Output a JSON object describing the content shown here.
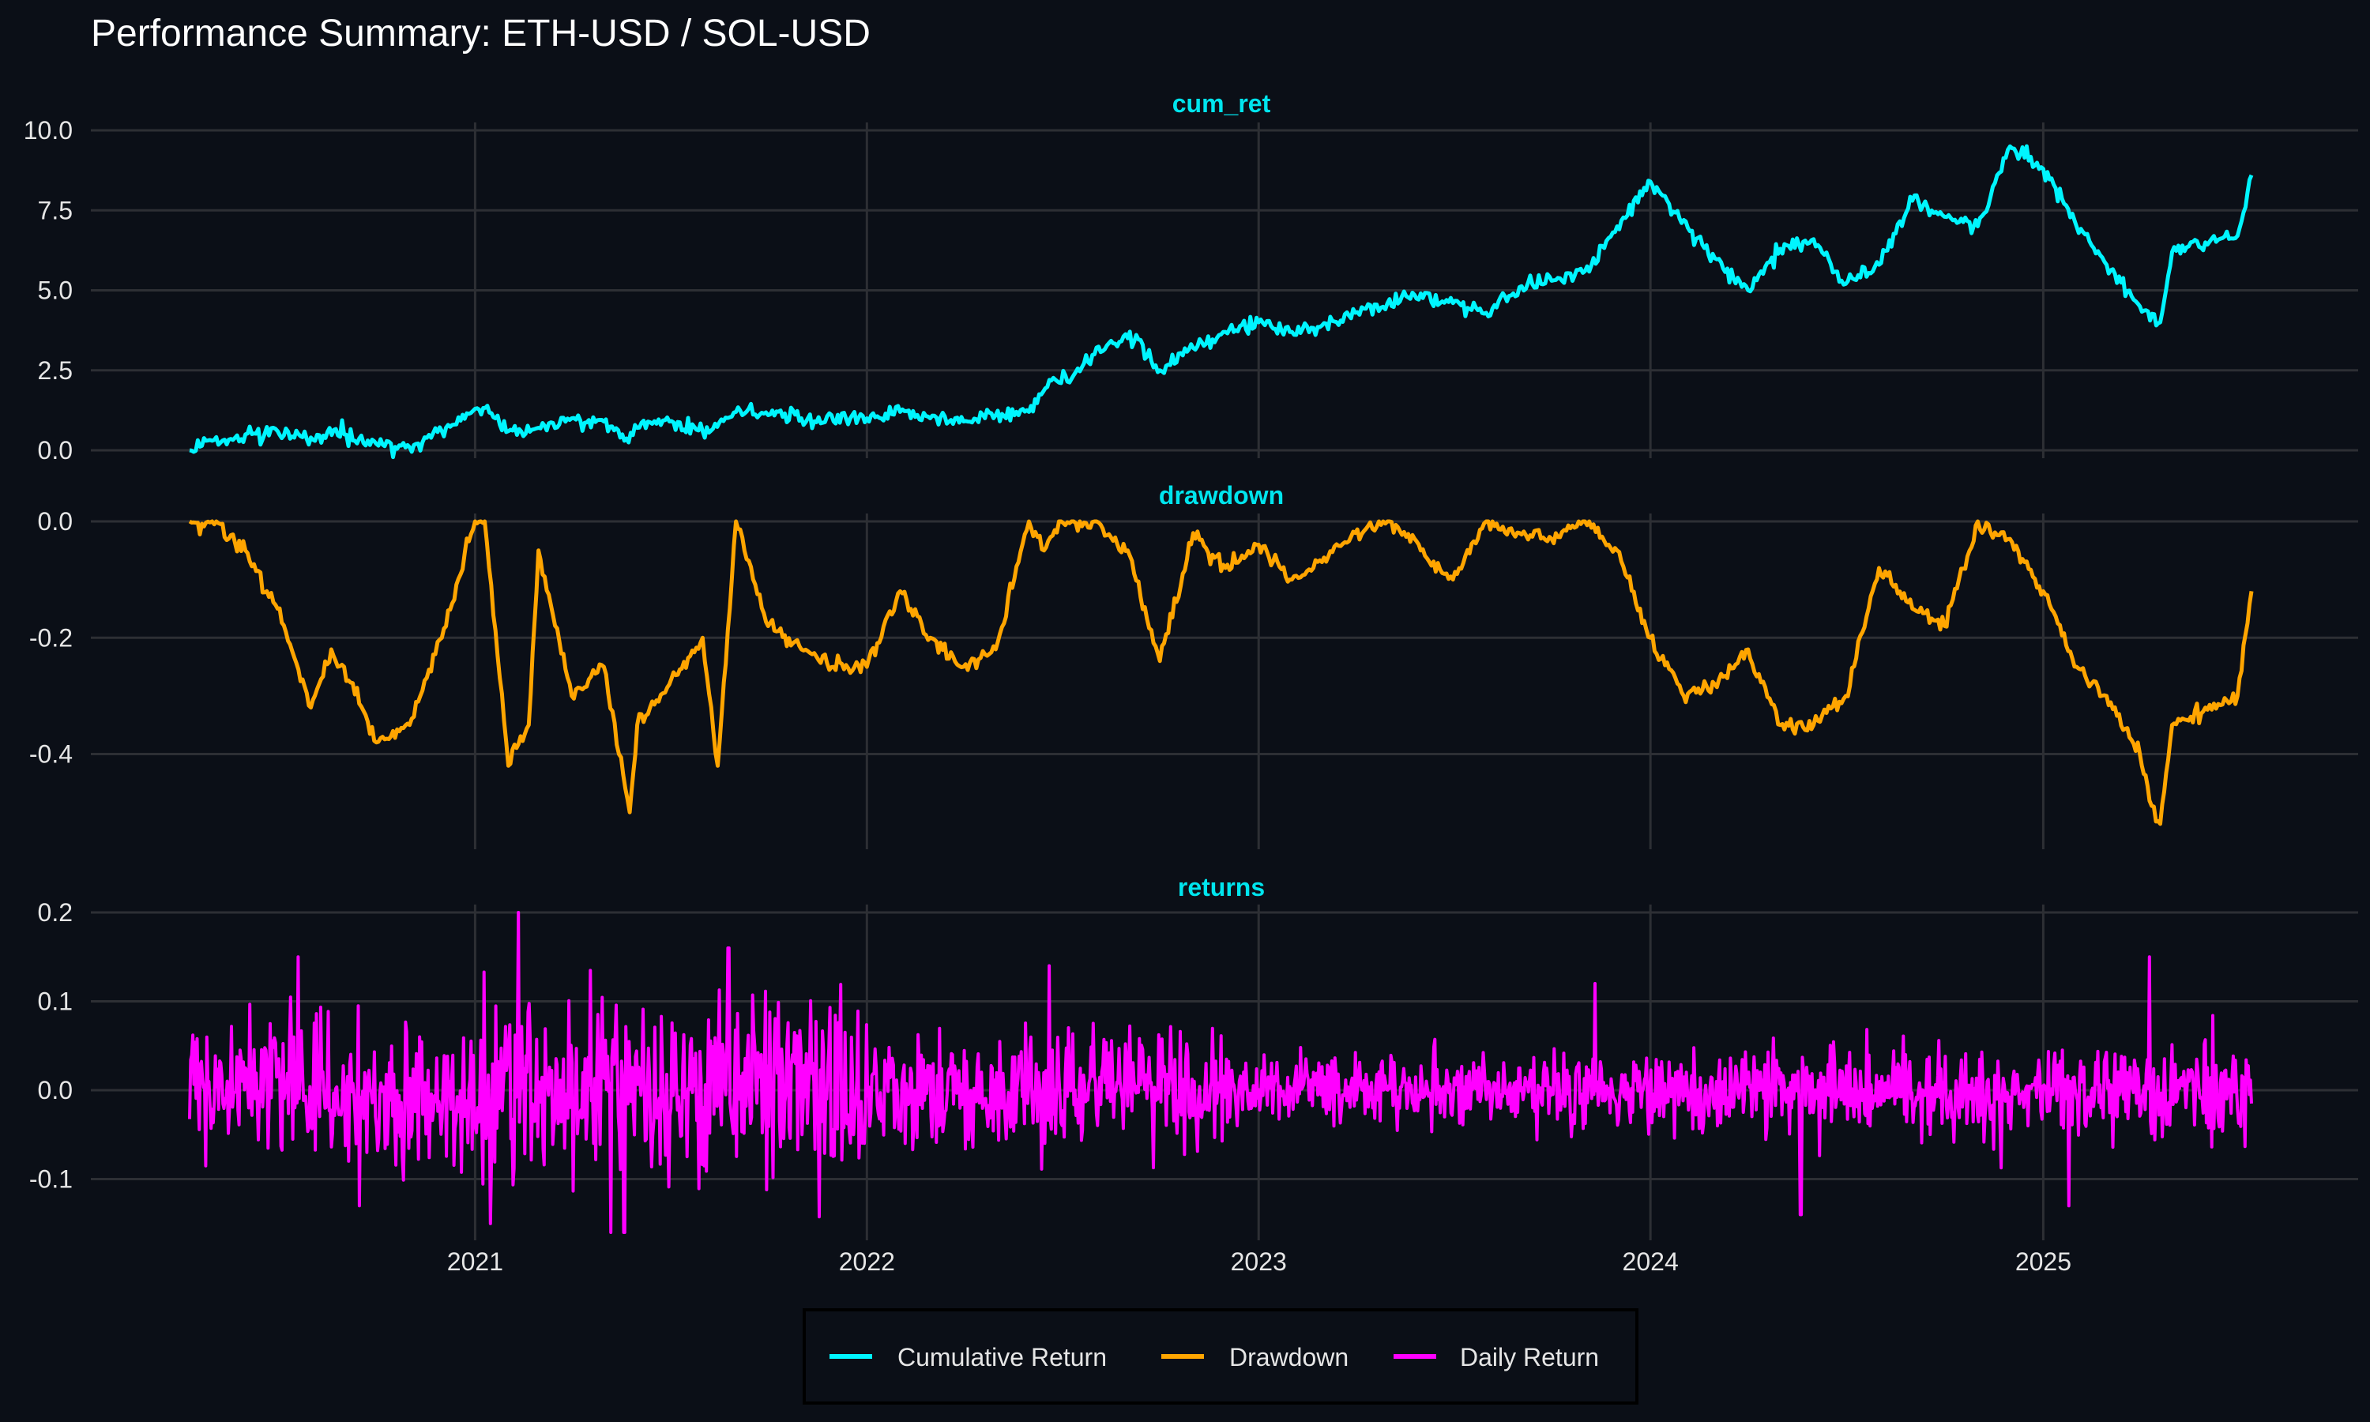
{
  "colors": {
    "background": "#0b0f17",
    "grid": "#2d2f34",
    "text": "#e6e6e6",
    "title": "#ffffff",
    "facet_title": "#00e5ee",
    "cum_ret": "#00f5ff",
    "drawdown": "#ffa500",
    "returns": "#ff00ff"
  },
  "chart_data": {
    "type": "line",
    "title": "Performance Summary: ETH-USD / SOL-USD",
    "x_range": [
      "2020-04-10",
      "2025-07-14"
    ],
    "x_ticks": [
      "2021",
      "2022",
      "2023",
      "2024",
      "2025"
    ],
    "x_tick_dates": [
      "2021-01-01",
      "2022-01-01",
      "2023-01-01",
      "2024-01-01",
      "2025-01-01"
    ],
    "legend": {
      "position": "bottom",
      "entries": [
        "Cumulative Return",
        "Drawdown",
        "Daily Return"
      ]
    },
    "facets": [
      {
        "name": "cum_ret",
        "legend": "Cumulative Return",
        "ylim": [
          0,
          10
        ],
        "y_ticks": [
          "0.0",
          "2.5",
          "5.0",
          "7.5",
          "10.0"
        ],
        "y_tick_values": [
          0,
          2.5,
          5,
          7.5,
          10
        ],
        "x": [
          "2020-04-10",
          "2020-05-01",
          "2020-06-01",
          "2020-07-01",
          "2020-08-01",
          "2020-09-01",
          "2020-10-01",
          "2020-11-01",
          "2020-12-01",
          "2021-01-01",
          "2021-01-20",
          "2021-02-01",
          "2021-03-01",
          "2021-04-01",
          "2021-05-01",
          "2021-05-20",
          "2021-06-01",
          "2021-07-01",
          "2021-08-01",
          "2021-09-01",
          "2021-10-01",
          "2021-11-01",
          "2021-12-01",
          "2022-01-01",
          "2022-02-01",
          "2022-03-01",
          "2022-04-01",
          "2022-05-01",
          "2022-06-01",
          "2022-06-20",
          "2022-07-01",
          "2022-08-01",
          "2022-09-01",
          "2022-09-15",
          "2022-10-01",
          "2022-11-01",
          "2022-12-01",
          "2023-01-01",
          "2023-02-01",
          "2023-03-01",
          "2023-04-01",
          "2023-05-01",
          "2023-06-01",
          "2023-07-01",
          "2023-08-01",
          "2023-09-01",
          "2023-10-01",
          "2023-11-01",
          "2023-12-01",
          "2024-01-01",
          "2024-02-01",
          "2024-03-01",
          "2024-04-01",
          "2024-05-01",
          "2024-06-01",
          "2024-07-01",
          "2024-08-01",
          "2024-09-01",
          "2024-10-01",
          "2024-11-01",
          "2024-12-01",
          "2025-01-01",
          "2025-02-01",
          "2025-03-01",
          "2025-04-01",
          "2025-04-20",
          "2025-05-01",
          "2025-06-01",
          "2025-07-01",
          "2025-07-14"
        ],
        "values": [
          0.0,
          0.3,
          0.5,
          0.6,
          0.4,
          0.5,
          0.2,
          0.1,
          0.6,
          1.3,
          1.0,
          0.6,
          0.7,
          1.0,
          0.9,
          0.3,
          0.7,
          0.9,
          0.6,
          1.2,
          1.1,
          1.0,
          0.9,
          1.0,
          1.2,
          1.0,
          0.9,
          1.1,
          1.2,
          2.2,
          2.1,
          3.0,
          3.5,
          3.3,
          2.5,
          3.2,
          3.7,
          4.0,
          3.7,
          3.9,
          4.3,
          4.6,
          4.9,
          4.6,
          4.3,
          5.1,
          5.3,
          5.6,
          7.0,
          8.4,
          7.2,
          6.0,
          5.0,
          6.3,
          6.6,
          5.2,
          5.8,
          7.8,
          7.3,
          7.0,
          9.5,
          8.8,
          7.0,
          5.8,
          4.5,
          4.0,
          6.2,
          6.5,
          6.7,
          8.6
        ]
      },
      {
        "name": "drawdown",
        "legend": "Drawdown",
        "ylim": [
          -0.55,
          0.0
        ],
        "y_ticks": [
          "0.0",
          "-0.2",
          "-0.4"
        ],
        "y_tick_values": [
          0,
          -0.2,
          -0.4
        ],
        "x": [
          "2020-04-10",
          "2020-05-01",
          "2020-06-01",
          "2020-07-01",
          "2020-08-01",
          "2020-08-20",
          "2020-09-01",
          "2020-10-01",
          "2020-11-01",
          "2020-12-01",
          "2021-01-01",
          "2021-01-10",
          "2021-02-01",
          "2021-02-20",
          "2021-03-01",
          "2021-04-01",
          "2021-05-01",
          "2021-05-25",
          "2021-06-01",
          "2021-07-01",
          "2021-08-01",
          "2021-08-15",
          "2021-09-01",
          "2021-10-01",
          "2021-11-01",
          "2021-12-01",
          "2022-01-01",
          "2022-02-01",
          "2022-03-01",
          "2022-04-01",
          "2022-05-01",
          "2022-06-01",
          "2022-06-15",
          "2022-07-01",
          "2022-08-01",
          "2022-09-01",
          "2022-10-01",
          "2022-11-01",
          "2022-12-01",
          "2023-01-01",
          "2023-02-01",
          "2023-03-01",
          "2023-04-01",
          "2023-05-01",
          "2023-06-01",
          "2023-07-01",
          "2023-08-01",
          "2023-09-01",
          "2023-10-01",
          "2023-11-01",
          "2023-12-01",
          "2024-01-01",
          "2024-02-01",
          "2024-03-01",
          "2024-04-01",
          "2024-05-01",
          "2024-06-01",
          "2024-07-01",
          "2024-08-01",
          "2024-09-01",
          "2024-10-01",
          "2024-11-01",
          "2024-12-01",
          "2025-01-01",
          "2025-02-01",
          "2025-03-01",
          "2025-04-01",
          "2025-04-10",
          "2025-04-20",
          "2025-05-01",
          "2025-06-01",
          "2025-07-01",
          "2025-07-14"
        ],
        "values": [
          0.0,
          0.0,
          -0.05,
          -0.15,
          -0.32,
          -0.22,
          -0.25,
          -0.38,
          -0.35,
          -0.2,
          0.0,
          0.0,
          -0.42,
          -0.35,
          -0.05,
          -0.3,
          -0.25,
          -0.5,
          -0.35,
          -0.28,
          -0.2,
          -0.42,
          0.0,
          -0.18,
          -0.22,
          -0.25,
          -0.25,
          -0.12,
          -0.2,
          -0.25,
          -0.22,
          0.0,
          -0.05,
          0.0,
          0.0,
          -0.05,
          -0.24,
          -0.02,
          -0.08,
          -0.04,
          -0.1,
          -0.07,
          -0.02,
          0.0,
          -0.05,
          -0.1,
          0.0,
          -0.02,
          -0.03,
          0.0,
          -0.05,
          -0.2,
          -0.3,
          -0.28,
          -0.22,
          -0.35,
          -0.35,
          -0.3,
          -0.08,
          -0.15,
          -0.18,
          0.0,
          -0.03,
          -0.12,
          -0.25,
          -0.3,
          -0.4,
          -0.48,
          -0.52,
          -0.35,
          -0.32,
          -0.3,
          -0.12
        ]
      },
      {
        "name": "returns",
        "legend": "Daily Return",
        "ylim": [
          -0.16,
          0.2
        ],
        "y_ticks": [
          "0.2",
          "0.1",
          "0.0",
          "-0.1"
        ],
        "y_tick_values": [
          0.2,
          0.1,
          0,
          -0.1
        ],
        "x_start": "2020-04-10",
        "x_end": "2025-07-14",
        "n_points": 1920,
        "volatility_by_year": {
          "2020": 0.04,
          "2021": 0.055,
          "2022": 0.03,
          "2023": 0.02,
          "2024": 0.025,
          "2025": 0.025
        },
        "spikes": [
          {
            "x": "2021-02-10",
            "y": 0.2
          },
          {
            "x": "2021-01-15",
            "y": -0.15
          },
          {
            "x": "2021-05-20",
            "y": -0.16
          },
          {
            "x": "2021-08-25",
            "y": 0.16
          },
          {
            "x": "2022-06-20",
            "y": 0.14
          },
          {
            "x": "2023-11-10",
            "y": 0.12
          },
          {
            "x": "2024-05-20",
            "y": -0.14
          },
          {
            "x": "2025-01-25",
            "y": -0.13
          },
          {
            "x": "2025-04-10",
            "y": 0.15
          },
          {
            "x": "2020-07-20",
            "y": 0.15
          },
          {
            "x": "2020-09-15",
            "y": -0.13
          }
        ]
      }
    ]
  }
}
